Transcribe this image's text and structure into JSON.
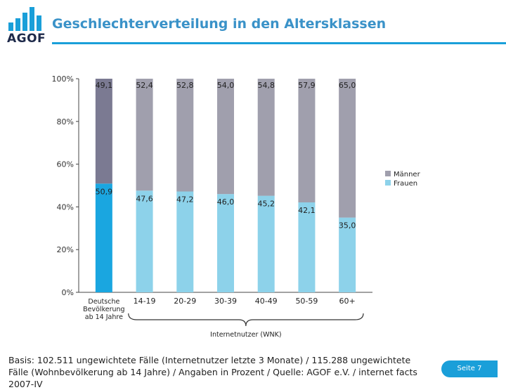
{
  "logo": {
    "text": "AGOF",
    "icon": "bar-chart-logo-icon"
  },
  "title": "Geschlechterverteilung in den Altersklassen",
  "chart_data": {
    "type": "bar",
    "stacked": true,
    "title": "Geschlechterverteilung in den Altersklassen",
    "categories": [
      "Deutsche Bevölkerung ab 14 Jahre",
      "14-19",
      "20-29",
      "30-39",
      "40-49",
      "50-59",
      "60+"
    ],
    "series": [
      {
        "name": "Frauen",
        "values": [
          50.9,
          47.6,
          47.2,
          46.0,
          45.2,
          42.1,
          35.0
        ],
        "labels": [
          "50,9",
          "47,6",
          "47,2",
          "46,0",
          "45,2",
          "42,1",
          "35,0"
        ],
        "color": "#8dd2ea",
        "first_color": "#1aa6e0"
      },
      {
        "name": "Männer",
        "values": [
          49.1,
          52.4,
          52.8,
          54.0,
          54.8,
          57.9,
          65.0
        ],
        "labels": [
          "49,1",
          "52,4",
          "52,8",
          "54,0",
          "54,8",
          "57,9",
          "65,0"
        ],
        "color": "#a09fad",
        "first_color": "#7b7a92"
      }
    ],
    "legend_order": [
      "Männer",
      "Frauen"
    ],
    "y_ticks": [
      "0%",
      "20%",
      "40%",
      "60%",
      "80%",
      "100%"
    ],
    "ylim": [
      0,
      100
    ],
    "category_label_lines": [
      [
        "Deutsche",
        "Bevölkerung",
        "ab 14 Jahre"
      ],
      [
        "14-19"
      ],
      [
        "20-29"
      ],
      [
        "30-39"
      ],
      [
        "40-49"
      ],
      [
        "50-59"
      ],
      [
        "60+"
      ]
    ],
    "group_annotation": "Internetnutzer (WNK)",
    "legend_position": "right"
  },
  "footnote": "Basis: 102.511 ungewichtete Fälle (Internetnutzer letzte 3 Monate) / 115.288 ungewichtete Fälle (Wohnbevölkerung ab 14 Jahre) / Angaben in Prozent / Quelle: AGOF e.V. / internet facts 2007-IV",
  "page_label": "Seite 7"
}
